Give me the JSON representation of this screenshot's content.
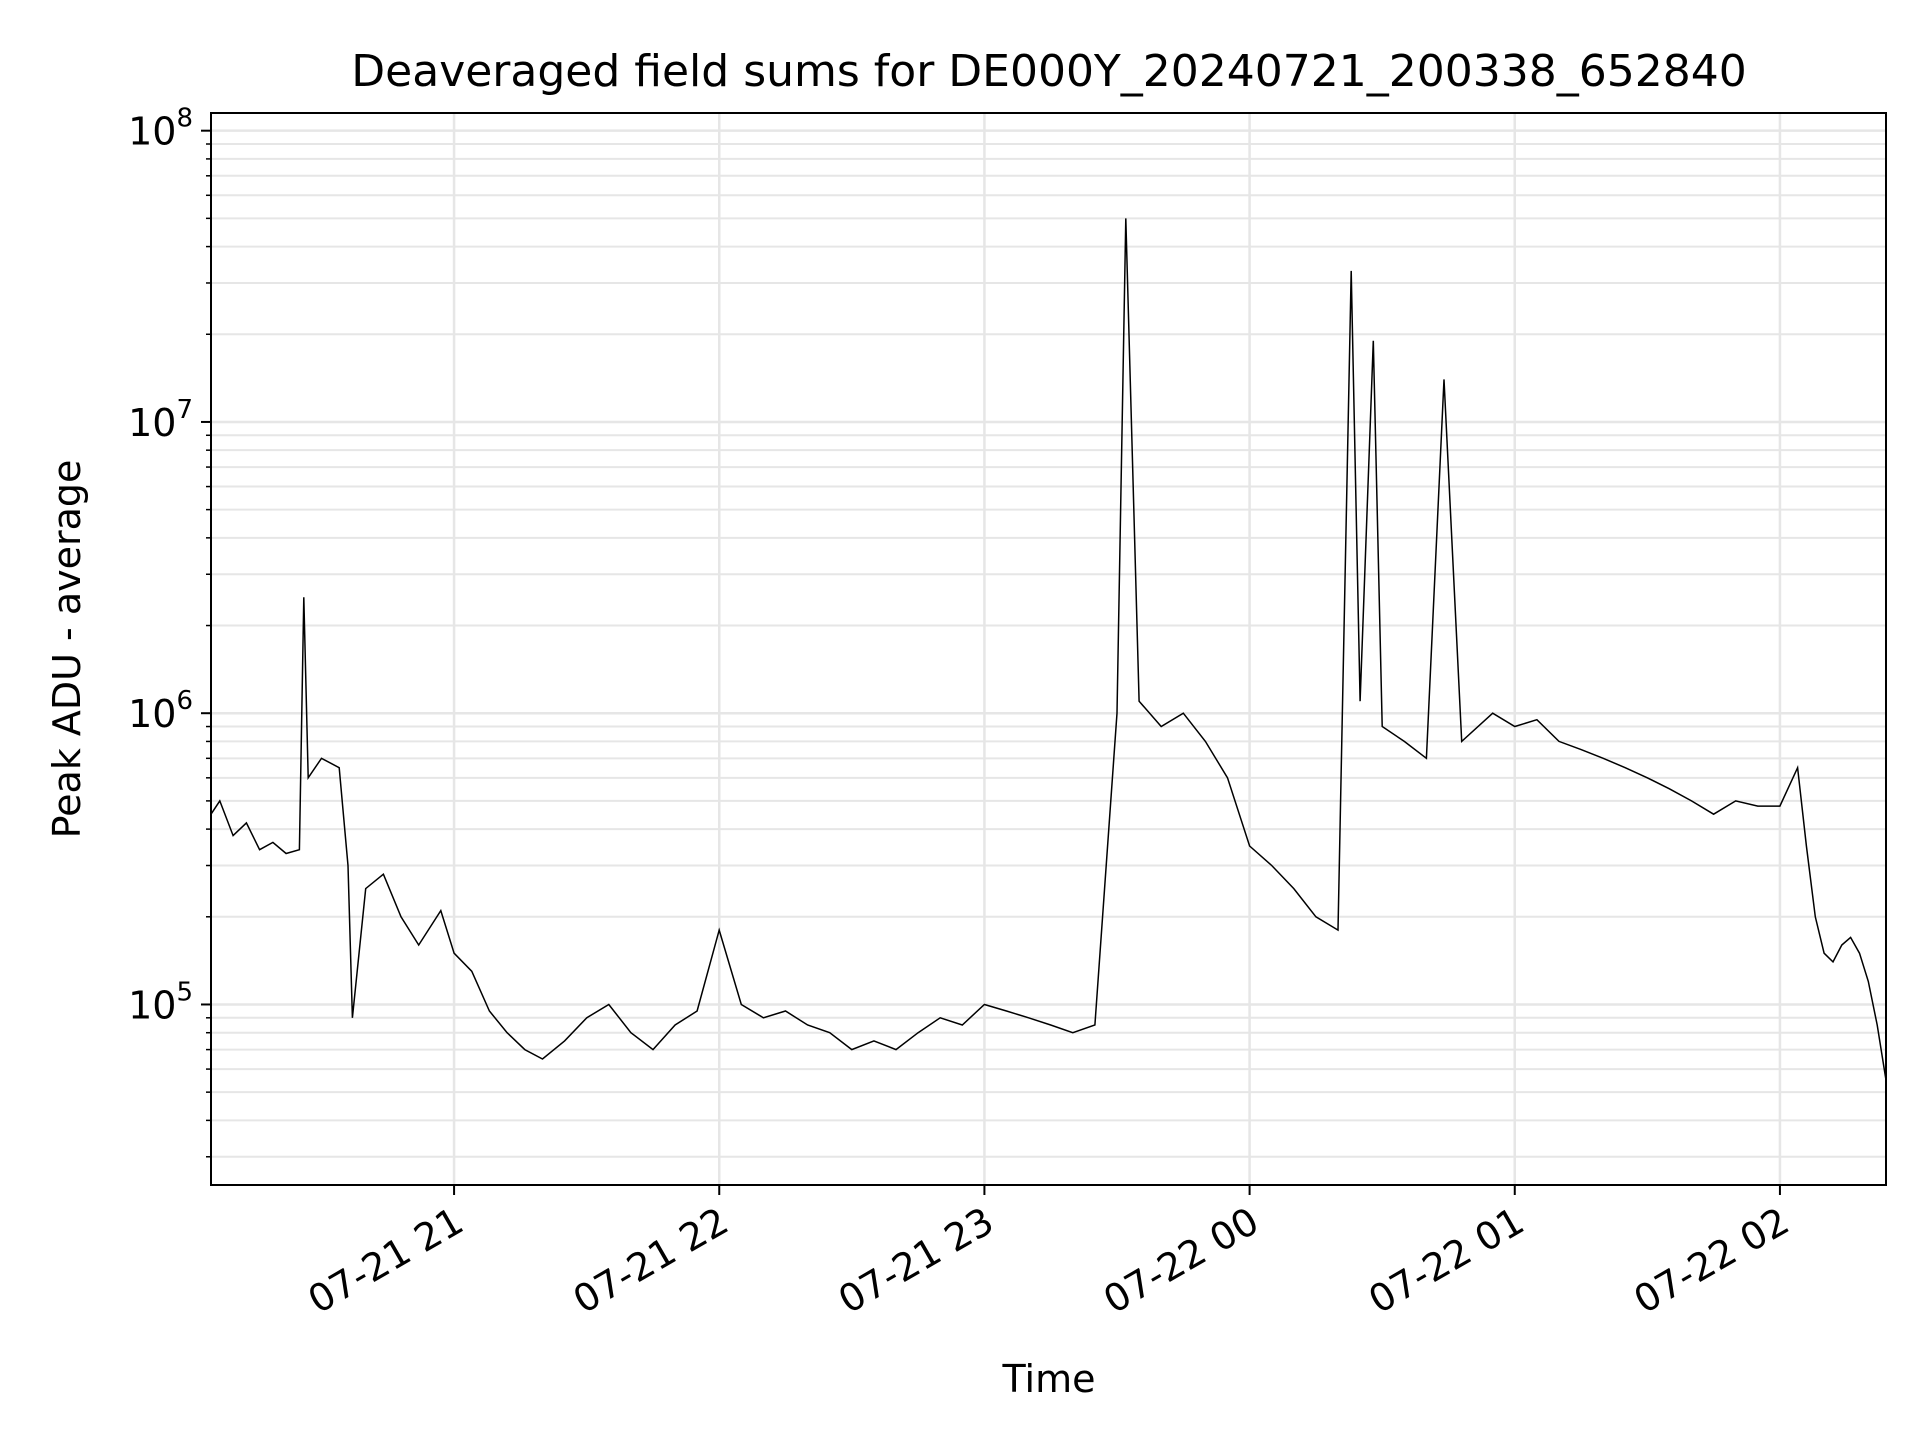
{
  "chart_data": {
    "type": "line",
    "title": "Deaveraged field sums for DE000Y_20240721_200338_652840",
    "xlabel": "Time",
    "ylabel": "Peak ADU - average",
    "yscale": "log",
    "ylim": [
      24000,
      115000000
    ],
    "xlim": [
      "2024-07-21 20:05",
      "2024-07-22 02:24"
    ],
    "x_ticks": [
      "07-21 21",
      "07-21 22",
      "07-21 23",
      "07-22 00",
      "07-22 01",
      "07-22 02"
    ],
    "y_ticks": [
      {
        "base": "10",
        "exp": "5",
        "value": 100000
      },
      {
        "base": "10",
        "exp": "6",
        "value": 1000000
      },
      {
        "base": "10",
        "exp": "7",
        "value": 10000000
      },
      {
        "base": "10",
        "exp": "8",
        "value": 100000000
      }
    ],
    "grid": true,
    "line_color": "#000000",
    "grid_color": "#e6e6e6",
    "legend": "none",
    "series": [
      {
        "x": [
          "2024-07-21 20:05",
          "2024-07-21 20:07",
          "2024-07-21 20:10",
          "2024-07-21 20:13",
          "2024-07-21 20:16",
          "2024-07-21 20:19",
          "2024-07-21 20:22",
          "2024-07-21 20:25",
          "2024-07-21 20:26",
          "2024-07-21 20:27",
          "2024-07-21 20:30",
          "2024-07-21 20:34",
          "2024-07-21 20:36",
          "2024-07-21 20:37",
          "2024-07-21 20:40",
          "2024-07-21 20:44",
          "2024-07-21 20:48",
          "2024-07-21 20:52",
          "2024-07-21 20:57",
          "2024-07-21 21:00",
          "2024-07-21 21:04",
          "2024-07-21 21:08",
          "2024-07-21 21:12",
          "2024-07-21 21:16",
          "2024-07-21 21:20",
          "2024-07-21 21:25",
          "2024-07-21 21:30",
          "2024-07-21 21:35",
          "2024-07-21 21:40",
          "2024-07-21 21:45",
          "2024-07-21 21:50",
          "2024-07-21 21:55",
          "2024-07-21 22:00",
          "2024-07-21 22:05",
          "2024-07-21 22:10",
          "2024-07-21 22:15",
          "2024-07-21 22:20",
          "2024-07-21 22:25",
          "2024-07-21 22:30",
          "2024-07-21 22:35",
          "2024-07-21 22:40",
          "2024-07-21 22:45",
          "2024-07-21 22:50",
          "2024-07-21 22:55",
          "2024-07-21 23:00",
          "2024-07-21 23:05",
          "2024-07-21 23:10",
          "2024-07-21 23:15",
          "2024-07-21 23:20",
          "2024-07-21 23:25",
          "2024-07-21 23:30",
          "2024-07-21 23:32",
          "2024-07-21 23:35",
          "2024-07-21 23:40",
          "2024-07-21 23:45",
          "2024-07-21 23:50",
          "2024-07-21 23:55",
          "2024-07-22 00:00",
          "2024-07-22 00:05",
          "2024-07-22 00:10",
          "2024-07-22 00:15",
          "2024-07-22 00:20",
          "2024-07-22 00:23",
          "2024-07-22 00:25",
          "2024-07-22 00:28",
          "2024-07-22 00:30",
          "2024-07-22 00:35",
          "2024-07-22 00:40",
          "2024-07-22 00:44",
          "2024-07-22 00:48",
          "2024-07-22 00:55",
          "2024-07-22 01:00",
          "2024-07-22 01:05",
          "2024-07-22 01:10",
          "2024-07-22 01:15",
          "2024-07-22 01:20",
          "2024-07-22 01:25",
          "2024-07-22 01:30",
          "2024-07-22 01:35",
          "2024-07-22 01:40",
          "2024-07-22 01:45",
          "2024-07-22 01:50",
          "2024-07-22 01:55",
          "2024-07-22 02:00",
          "2024-07-22 02:04",
          "2024-07-22 02:06",
          "2024-07-22 02:08",
          "2024-07-22 02:10",
          "2024-07-22 02:12",
          "2024-07-22 02:14",
          "2024-07-22 02:16",
          "2024-07-22 02:18",
          "2024-07-22 02:20",
          "2024-07-22 02:22",
          "2024-07-22 02:24"
        ],
        "y": [
          450000,
          500000,
          380000,
          420000,
          340000,
          360000,
          330000,
          340000,
          2500000,
          600000,
          700000,
          650000,
          300000,
          90000,
          250000,
          280000,
          200000,
          160000,
          210000,
          150000,
          130000,
          95000,
          80000,
          70000,
          65000,
          75000,
          90000,
          100000,
          80000,
          70000,
          85000,
          95000,
          180000,
          100000,
          90000,
          95000,
          85000,
          80000,
          70000,
          75000,
          70000,
          80000,
          90000,
          85000,
          100000,
          95000,
          90000,
          85000,
          80000,
          85000,
          1000000,
          50000000,
          1100000,
          900000,
          1000000,
          800000,
          600000,
          350000,
          300000,
          250000,
          200000,
          180000,
          33000000,
          1100000,
          19000000,
          900000,
          800000,
          700000,
          14000000,
          800000,
          1000000,
          900000,
          950000,
          800000,
          750000,
          700000,
          650000,
          600000,
          550000,
          500000,
          450000,
          500000,
          480000,
          480000,
          650000,
          350000,
          200000,
          150000,
          140000,
          160000,
          170000,
          150000,
          120000,
          85000,
          55000
        ]
      }
    ]
  }
}
